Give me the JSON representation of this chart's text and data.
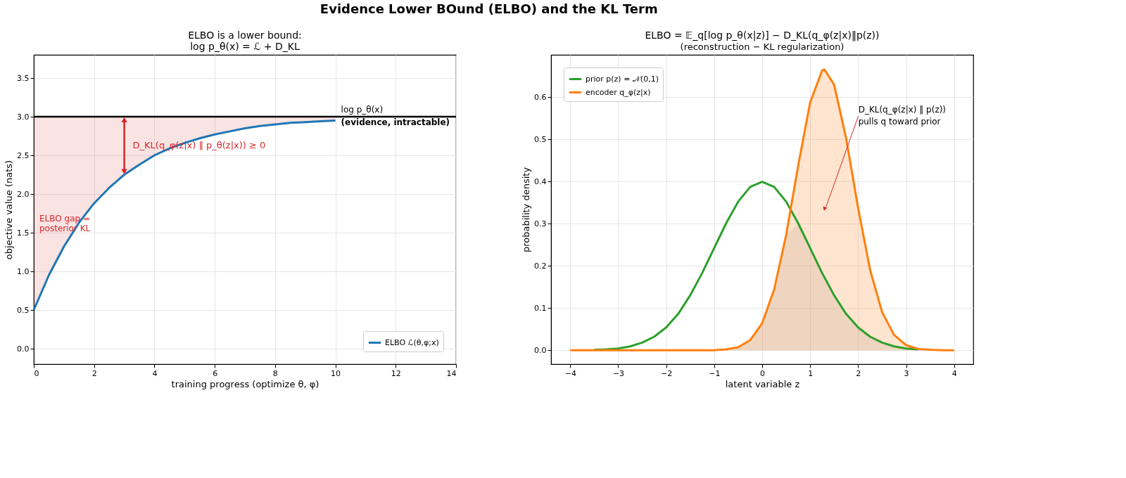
{
  "chart_data": [
    {
      "type": "line",
      "title": "Evidence Lower BOund (ELBO) and the KL Term",
      "subtitle": "ELBO is a lower bound:\nlog p_θ(x) = ℒ + D_KL",
      "xlabel": "training progress  (optimize θ, φ)",
      "ylabel": "objective value (nats)",
      "xlim": [
        0,
        14
      ],
      "xticks": [
        0,
        2,
        4,
        6,
        8,
        10,
        12,
        14
      ],
      "ylim": [
        -0.2,
        3.8
      ],
      "yticks": [
        {
          "value": 0,
          "label": "0.0"
        },
        0.5,
        {
          "value": 1,
          "label": "1.0"
        },
        1.5,
        {
          "value": 2,
          "label": "2.0"
        },
        2.5,
        {
          "value": 3,
          "label": "3.0"
        },
        3.5
      ],
      "grid": true,
      "legend": "bottom right",
      "series": [
        {
          "name": "ELBO ℒ(θ,φ;x)",
          "color": "#1f77b4",
          "x": [
            0,
            0.5,
            1,
            1.5,
            2,
            2.5,
            3,
            3.5,
            4,
            4.5,
            5,
            5.5,
            6,
            6.5,
            7,
            7.5,
            8,
            8.5,
            9,
            9.5,
            10
          ],
          "values": [
            0.5,
            0.95,
            1.32,
            1.63,
            1.88,
            2.08,
            2.25,
            2.38,
            2.5,
            2.59,
            2.66,
            2.72,
            2.77,
            2.81,
            2.85,
            2.88,
            2.9,
            2.92,
            2.93,
            2.94,
            2.95
          ],
          "lower": [
            0.5,
            0.95,
            1.32,
            1.63,
            1.88,
            2.08,
            2.25,
            2.38,
            2.5,
            2.59,
            2.66,
            2.72,
            2.77,
            2.81,
            2.85,
            2.88,
            2.9,
            2.92,
            2.93,
            2.94,
            2.95
          ],
          "upper": [
            3,
            3,
            3,
            3,
            3,
            3,
            3,
            3,
            3,
            3,
            3,
            3,
            3,
            3,
            3,
            3,
            3,
            3,
            3,
            3,
            3
          ]
        }
      ],
      "ref_lines": [
        {
          "axis": "y",
          "value": 3,
          "label": "log p_θ(x)\n(evidence, intractable)",
          "color": "#000000"
        }
      ],
      "annotations": [
        "ELBO gap =\nposterior KL",
        {
          "text": "D_KL(q_φ(z|x) ‖ p_θ(z|x)) ≥ 0",
          "x": 3,
          "y": 2.25
        }
      ]
    },
    {
      "type": "line",
      "title": "ELBO  =  𝔼_q[log p_θ(x|z)]  −  D_KL(q_φ(z|x)‖p(z))",
      "subtitle": "(reconstruction  −  KL regularization)",
      "xlabel": "latent variable  z",
      "ylabel": "probability density",
      "xlim": [
        -4.4,
        4.4
      ],
      "xticks": [
        -4,
        -3,
        -2,
        -1,
        0,
        1,
        2,
        3,
        4
      ],
      "ylim": [
        -0.033,
        0.7
      ],
      "yticks": [
        {
          "value": 0,
          "label": "0.0"
        },
        0.1,
        0.2,
        0.3,
        0.4,
        0.5,
        0.6
      ],
      "grid": true,
      "legend": "top left",
      "series": [
        {
          "type": "area",
          "color": "#999999",
          "x": [
            -4,
            -3.75,
            -3.5,
            -3.25,
            -3,
            -2.75,
            -2.5,
            -2.25,
            -2,
            -1.75,
            -1.5,
            -1.25,
            -1,
            -0.75,
            -0.5,
            -0.25,
            0,
            0.25,
            0.5,
            0.75,
            1,
            1.25,
            1.5,
            1.75,
            2,
            2.25,
            2.5,
            2.75,
            3,
            3.25,
            3.5,
            3.75,
            4
          ],
          "values": [
            0,
            0,
            0,
            0,
            0,
            0,
            0,
            0,
            0,
            0,
            0,
            0,
            0,
            0.002,
            0.007,
            0.024,
            0.064,
            0.144,
            0.273,
            0.301,
            0.242,
            0.183,
            0.13,
            0.086,
            0.054,
            0.032,
            0.018,
            0.009,
            0.004,
            0.002,
            0.001,
            0,
            0
          ]
        },
        {
          "name": "prior p(z) = 𝒩(0,1)",
          "color": "#2ca02c",
          "x": [
            -3.5,
            -3.25,
            -3,
            -2.75,
            -2.5,
            -2.25,
            -2,
            -1.75,
            -1.5,
            -1.25,
            -1,
            -0.75,
            -0.5,
            -0.25,
            0,
            0.25,
            0.5,
            0.75,
            1,
            1.25,
            1.5,
            1.75,
            2,
            2.25,
            2.5,
            2.75,
            3,
            3.25
          ],
          "values": [
            0.001,
            0.002,
            0.004,
            0.009,
            0.018,
            0.032,
            0.054,
            0.086,
            0.13,
            0.183,
            0.242,
            0.301,
            0.352,
            0.387,
            0.399,
            0.387,
            0.352,
            0.301,
            0.242,
            0.183,
            0.13,
            0.086,
            0.054,
            0.032,
            0.018,
            0.009,
            0.004,
            0.002
          ]
        },
        {
          "type": "area",
          "name": "encoder q_φ(z|x)",
          "color": "#ff7f0e",
          "x": [
            -4,
            -3.75,
            -3.5,
            -3.25,
            -3,
            -2.75,
            -2.5,
            -2.25,
            -2,
            -1.75,
            -1.5,
            -1.25,
            -1,
            -0.75,
            -0.5,
            -0.25,
            0,
            0.25,
            0.5,
            0.75,
            1,
            1.25,
            1.3,
            1.5,
            1.75,
            2,
            2.25,
            2.5,
            2.75,
            3,
            3.25,
            3.5,
            3.75,
            4
          ],
          "values": [
            0,
            0,
            0,
            0,
            0,
            0,
            0,
            0,
            0,
            0,
            0,
            0,
            0,
            0.002,
            0.007,
            0.024,
            0.064,
            0.144,
            0.273,
            0.437,
            0.587,
            0.663,
            0.665,
            0.629,
            0.502,
            0.337,
            0.19,
            0.09,
            0.036,
            0.012,
            0.003,
            0.001,
            0,
            0
          ]
        }
      ],
      "annotations": [
        {
          "text": "D_KL(q_φ(z|x) ‖ p(z))\npulls q toward prior",
          "x": 1.3,
          "y": 0.335
        }
      ]
    }
  ]
}
